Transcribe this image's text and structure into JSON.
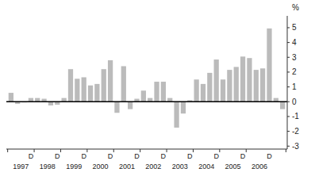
{
  "chart_data": {
    "type": "bar",
    "ylabel": "%",
    "categories": [
      null,
      null,
      null,
      "D",
      null,
      null,
      null,
      "D",
      null,
      null,
      null,
      "D",
      null,
      null,
      null,
      "D",
      null,
      null,
      null,
      "D",
      null,
      null,
      null,
      "D",
      null,
      null,
      null,
      "D",
      null,
      null,
      null,
      "D",
      null,
      null,
      null,
      "D",
      null,
      null,
      null,
      "D",
      null,
      null
    ],
    "values": [
      0.6,
      -0.15,
      -0.05,
      0.25,
      0.25,
      0.2,
      -0.25,
      -0.2,
      0.25,
      2.2,
      1.55,
      1.65,
      1.1,
      1.2,
      2.2,
      2.8,
      -0.75,
      2.4,
      -0.5,
      0.2,
      0.75,
      0.25,
      1.35,
      1.35,
      0.25,
      -1.75,
      -0.8,
      0.1,
      1.5,
      1.2,
      1.95,
      2.85,
      1.5,
      2.15,
      2.35,
      3.05,
      2.95,
      2.15,
      2.25,
      4.95,
      0.25,
      -0.5
    ],
    "annotations": [
      "1997",
      "1998",
      "1999",
      "2000",
      "2001",
      "2002",
      "2003",
      "2004",
      "2005",
      "2006"
    ],
    "color": "#bbbbbb",
    "ylim": [
      -3.2,
      5.8
    ],
    "yticks": [
      -3,
      -2,
      -1,
      0,
      1,
      2,
      3,
      4,
      5
    ],
    "grid": false
  }
}
